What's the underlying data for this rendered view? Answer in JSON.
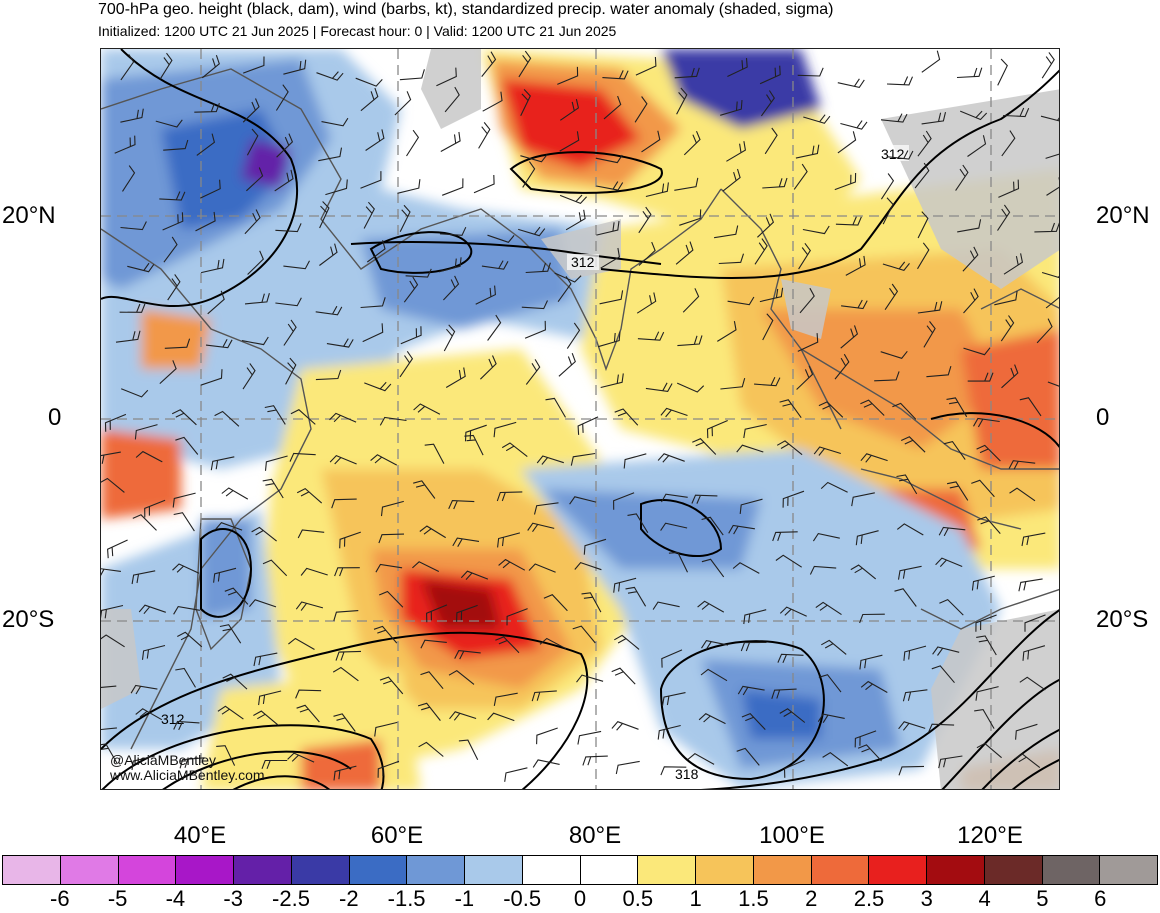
{
  "header": {
    "title": "700-hPa geo. height (black, dam), wind (barbs, kt), standardized precip. water anomaly (shaded, sigma)",
    "subtitle": "Initialized: 1200 UTC 21 Jun 2025 | Forecast hour: 0 | Valid: 1200 UTC 21 Jun 2025"
  },
  "map": {
    "region": "Indian Ocean / Maritime Continent",
    "lat_labels": {
      "north20": "20°N",
      "equator": "0",
      "south20": "20°S"
    },
    "lon_labels": [
      "40°E",
      "60°E",
      "80°E",
      "100°E",
      "120°E"
    ],
    "contour_labels": [
      "312",
      "312",
      "312",
      "318"
    ],
    "credit": {
      "handle": "@AliciaMBentley",
      "site": "www.AliciaMBentley.com"
    },
    "colors": {
      "land_gray": "#c8c8c8",
      "contour": "#000000",
      "coast": "#555555"
    }
  },
  "colorbar": {
    "labels": [
      "-6",
      "-5",
      "-4",
      "-3",
      "-2.5",
      "-2",
      "-1.5",
      "-1",
      "-0.5",
      "0",
      "0.5",
      "1",
      "1.5",
      "2",
      "2.5",
      "3",
      "4",
      "5",
      "6"
    ],
    "colors": [
      "#e8b6e8",
      "#e07ae6",
      "#d445dc",
      "#a817c8",
      "#6420a8",
      "#3a3aa6",
      "#3b6cc4",
      "#6f98d6",
      "#a9c9ea",
      "#ffffff",
      "#ffffff",
      "#fbe87a",
      "#f6c45a",
      "#f29848",
      "#ee6a3a",
      "#e8201e",
      "#a30c10",
      "#6b2a28",
      "#6e6464",
      "#a09a98"
    ]
  }
}
